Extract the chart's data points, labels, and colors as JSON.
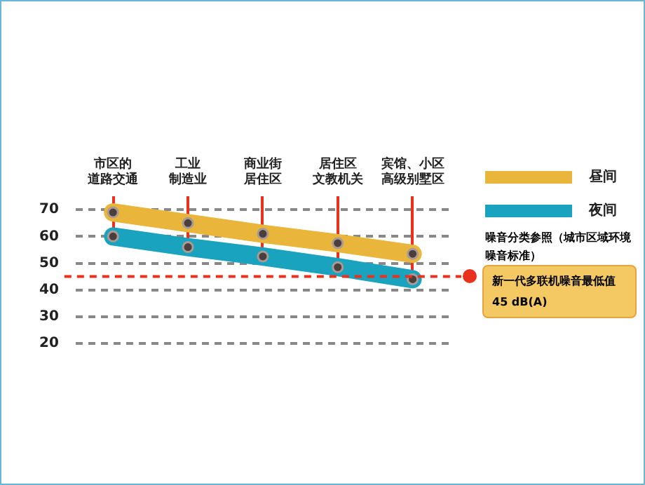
{
  "chart_data": {
    "type": "line",
    "categories": [
      "市区的道路交通",
      "工业制造业",
      "商业街居住区",
      "居住区文教机关",
      "宾馆、小区高级别墅区"
    ],
    "series": [
      {
        "name": "昼间",
        "color": "#e9b53a",
        "values": [
          69,
          65,
          61,
          57.5,
          53.5
        ]
      },
      {
        "name": "夜间",
        "color": "#19a3bf",
        "values": [
          60,
          56,
          52.5,
          48.5,
          44
        ]
      }
    ],
    "ylim": [
      20,
      70
    ],
    "yticks": [
      20,
      30,
      40,
      50,
      60,
      70
    ],
    "grid": "y",
    "marker": "circle",
    "legend": "right",
    "ref_lines": [
      {
        "axis": "y",
        "value": 45,
        "label": "新一代多联机噪音最低值45 dB(A)",
        "color": "#e8321e",
        "line_style": "dashed"
      }
    ],
    "annotations": [
      "噪音分类参照（城市区域环境噪音标准）"
    ]
  }
}
